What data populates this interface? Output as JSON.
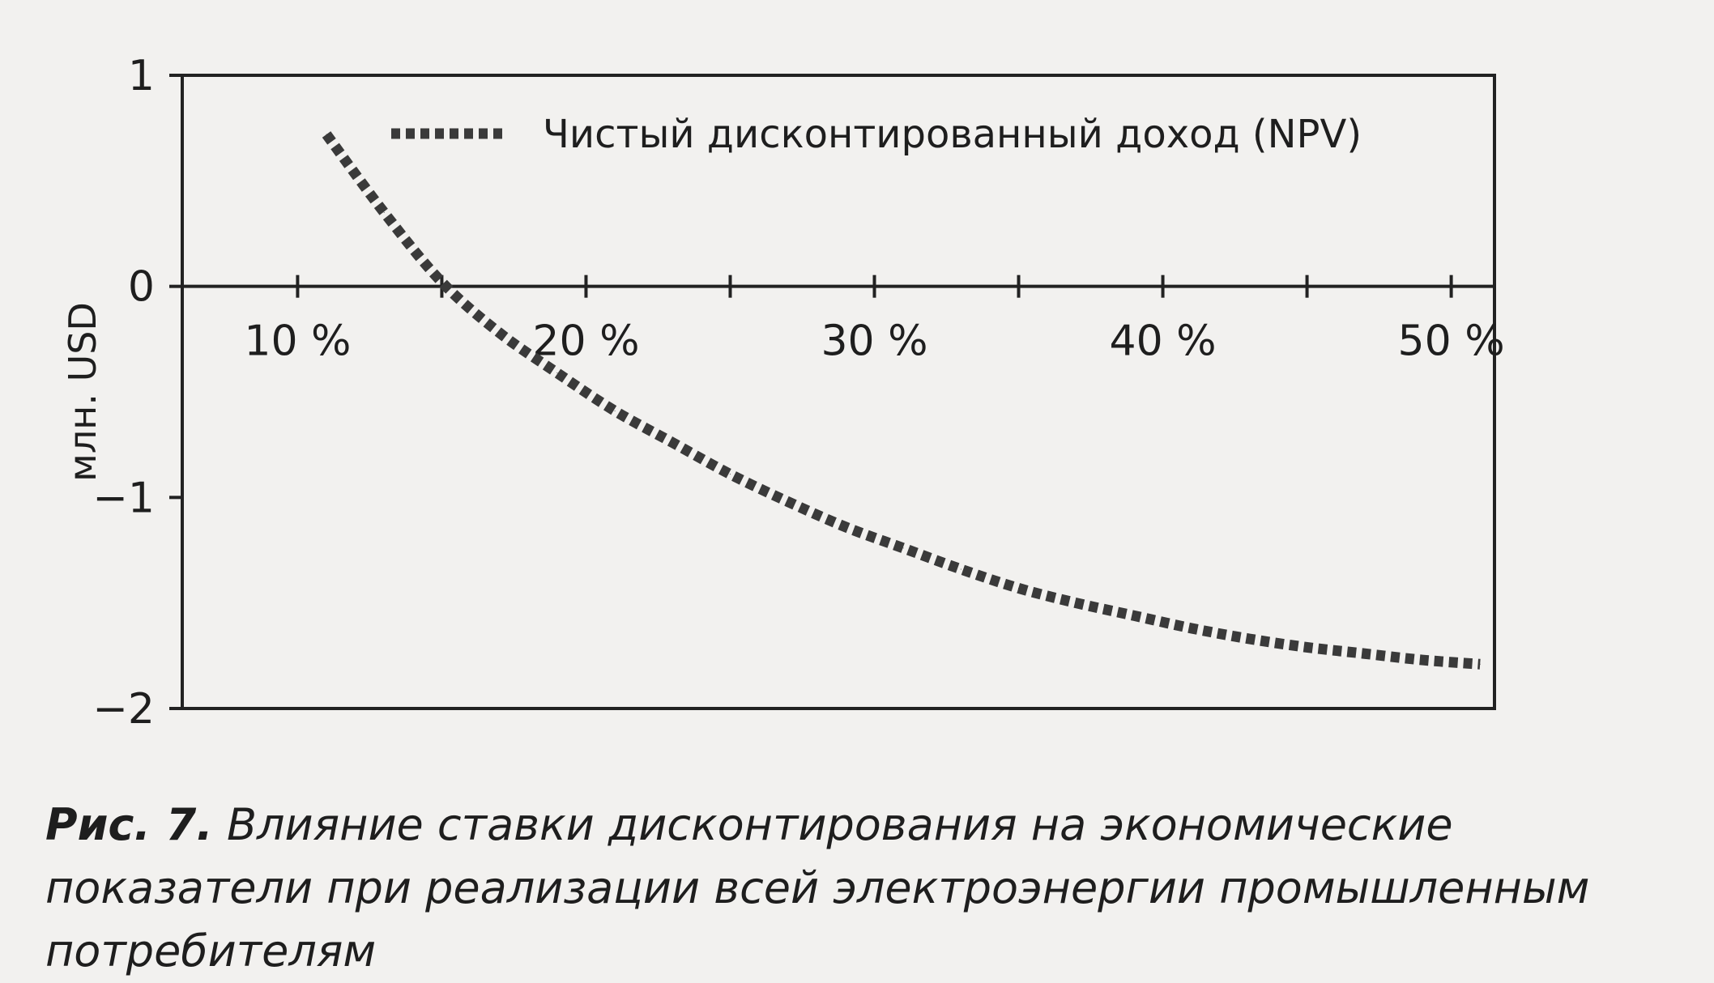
{
  "chart_data": {
    "type": "line",
    "x": [
      11,
      13,
      15,
      17,
      19,
      21,
      23,
      25,
      27,
      29,
      31,
      33,
      35,
      37,
      39,
      41,
      43,
      45,
      47,
      49,
      51
    ],
    "x_tick_labels": [
      "10 %",
      "20 %",
      "30 %",
      "40 %",
      "50 %"
    ],
    "x_tick_values": [
      10,
      20,
      30,
      40,
      50
    ],
    "x_minor_ticks": [
      10,
      15,
      20,
      25,
      30,
      35,
      40,
      45,
      50
    ],
    "xlim": [
      6,
      51.5
    ],
    "ylim": [
      -2,
      1
    ],
    "y_ticks": [
      1,
      0,
      -1,
      -2
    ],
    "y_tick_labels": [
      "1",
      "0",
      "−1",
      "−2"
    ],
    "ylabel": "млн. USD",
    "xlabel": "",
    "series": [
      {
        "name": "Чистый дисконтированный доход (NPV)",
        "style": "dashed",
        "color": "#3a3a3a",
        "values": [
          0.72,
          0.35,
          0.02,
          -0.22,
          -0.41,
          -0.59,
          -0.74,
          -0.89,
          -1.02,
          -1.14,
          -1.24,
          -1.34,
          -1.43,
          -1.5,
          -1.56,
          -1.62,
          -1.67,
          -1.71,
          -1.74,
          -1.77,
          -1.79
        ]
      }
    ],
    "legend_position": "top",
    "grid": false
  },
  "caption": {
    "label": "Рис. 7.",
    "text": " Влияние ставки дисконтирования на экономические показатели при реализации всей электроэнергии промышленным потребителям"
  }
}
